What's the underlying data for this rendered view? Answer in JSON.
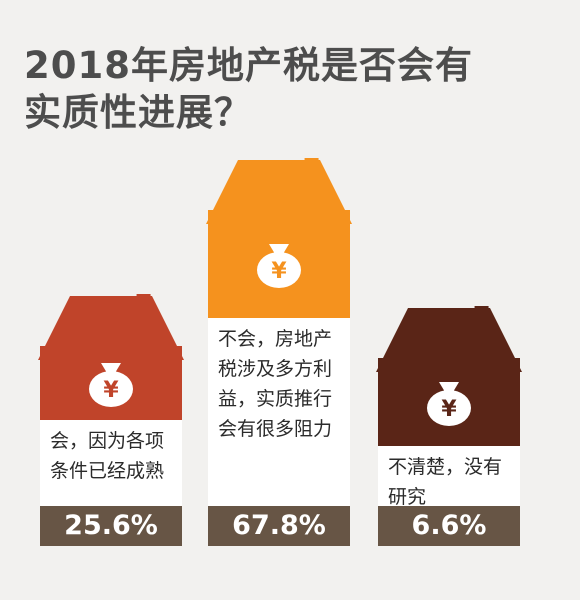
{
  "title_lines": [
    "2018年房地产税是否会有",
    "实质性进展？"
  ],
  "currency_symbol": "¥",
  "chart_data": {
    "type": "bar",
    "title": "2018年房地产税是否会有实质性进展？",
    "categories": [
      "会，因为各项条件已经成熟",
      "不会，房地产税涉及多方利益，实质推行会有很多阻力",
      "不清楚，没有研究"
    ],
    "values": [
      25.6,
      67.8,
      6.6
    ],
    "value_labels": [
      "25.6%",
      "67.8%",
      "6.6%"
    ],
    "unit": "%",
    "colors": [
      "#c0442a",
      "#f5921e",
      "#5a2517"
    ]
  }
}
